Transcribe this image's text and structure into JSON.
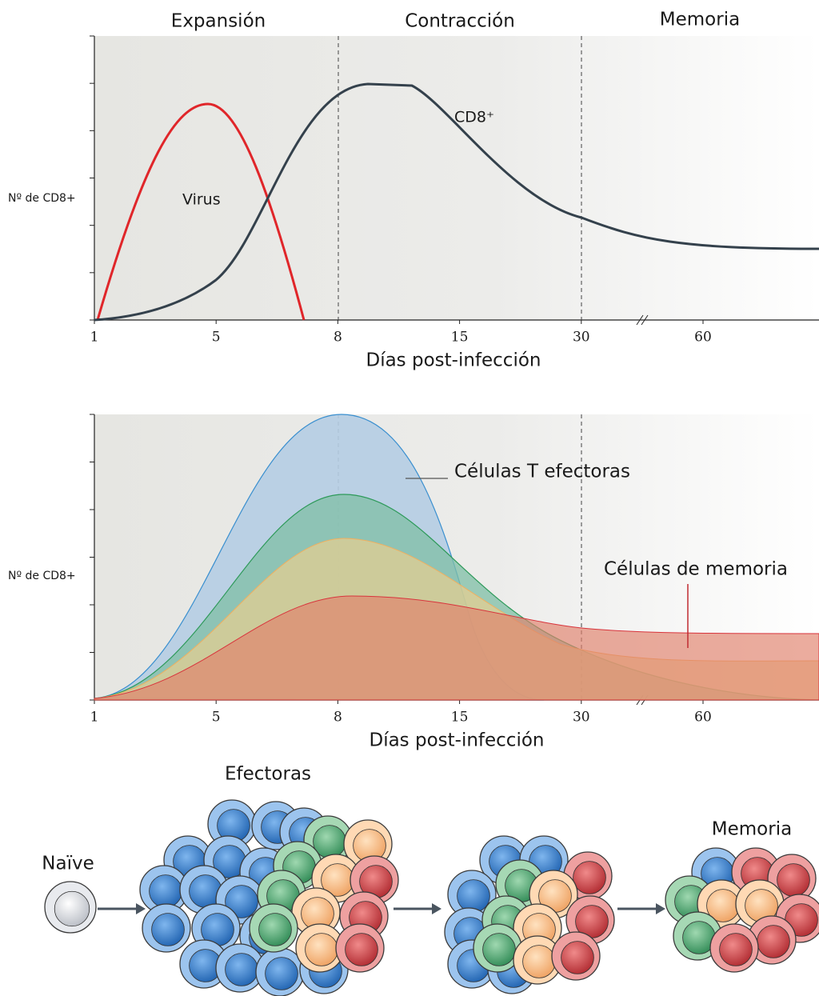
{
  "panel_top": {
    "phases": [
      "Expansión",
      "Contracción",
      "Memoria"
    ],
    "y_label": "Nº de CD8+",
    "x_ticks": [
      "1",
      "5",
      "8",
      "15",
      "30",
      "60"
    ],
    "x_label": "Días post-infección",
    "curve_labels": {
      "virus": "Virus",
      "cd8": "CD8⁺"
    }
  },
  "panel_bottom": {
    "y_label": "Nº de CD8+",
    "x_ticks": [
      "1",
      "5",
      "8",
      "15",
      "30",
      "60"
    ],
    "x_label": "Días post-infección",
    "curve_labels": {
      "effector": "Células T efectoras",
      "memory": "Células de memoria"
    }
  },
  "cells": {
    "effector_title": "Efectoras",
    "naive": "Naïve",
    "memory_title": "Memoria"
  }
}
